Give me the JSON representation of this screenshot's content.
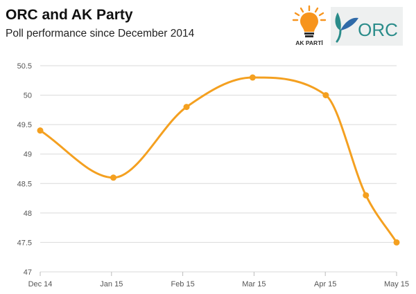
{
  "header": {
    "title": "ORC and AK Party",
    "subtitle": "Poll performance since December 2014"
  },
  "logos": {
    "ak_parti": {
      "text": "AK PARTİ",
      "icon": "lightbulb-icon",
      "colors": {
        "orange": "#f7941d",
        "dark": "#2b2b2b"
      }
    },
    "orc": {
      "text": "ORC",
      "icon": "leaf-icon",
      "colors": {
        "teal": "#2a8c8a",
        "blue": "#2f6aa8",
        "bg": "#eef0f0"
      }
    }
  },
  "chart_data": {
    "type": "line",
    "title": "ORC and AK Party",
    "subtitle": "Poll performance since December 2014",
    "x_tick_labels": [
      "Dec 14",
      "Jan 15",
      "Feb 15",
      "Mar 15",
      "Apr 15",
      "May 15"
    ],
    "x": [
      "2014-12-01",
      "2015-01-01",
      "2015-02-01",
      "2015-03-01",
      "2015-04-01",
      "2015-04-18",
      "2015-05-01"
    ],
    "y": [
      49.4,
      48.6,
      49.8,
      50.3,
      50.0,
      48.3,
      47.5
    ],
    "y_ticks": [
      "47",
      "47.5",
      "48",
      "48.5",
      "49",
      "49.5",
      "50",
      "50.5"
    ],
    "ylim": [
      47,
      50.5
    ],
    "grid": true,
    "smooth": true,
    "line_color": "#f4a020",
    "legend": "none"
  }
}
